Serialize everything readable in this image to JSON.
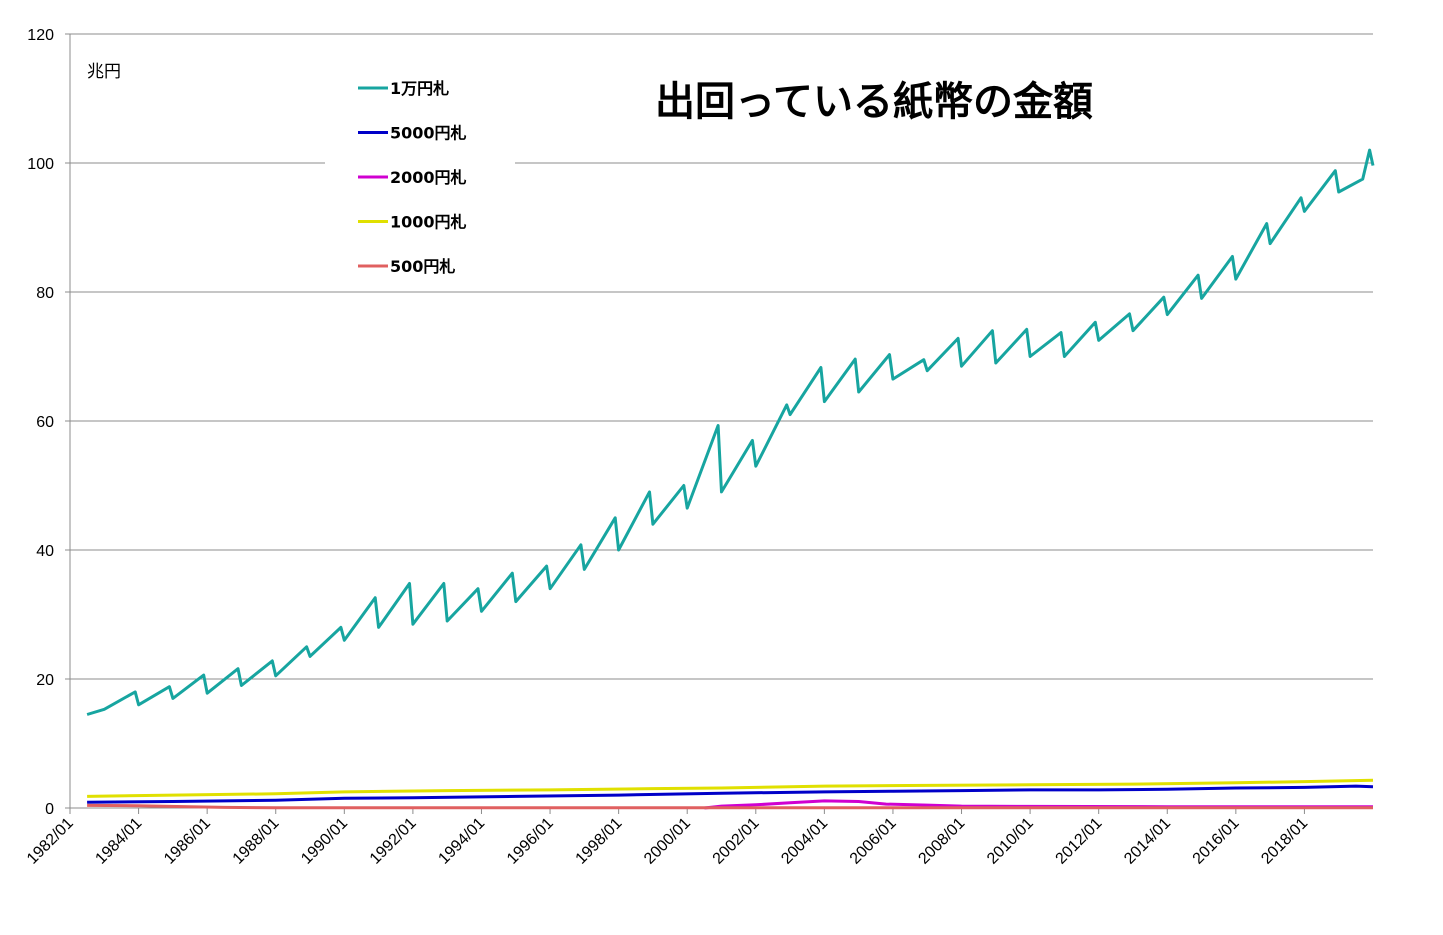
{
  "chart_data": {
    "type": "line",
    "title": "出回っている紙幣の金額",
    "ylabel": "兆円",
    "ylim": [
      0,
      120
    ],
    "yticks": [
      "0",
      "20",
      "40",
      "60",
      "80",
      "100",
      "120"
    ],
    "xticks": [
      "1982/01",
      "1984/01",
      "1986/01",
      "1988/01",
      "1990/01",
      "1992/01",
      "1994/01",
      "1996/01",
      "1998/01",
      "2000/01",
      "2002/01",
      "2004/01",
      "2006/01",
      "2008/01",
      "2010/01",
      "2012/01",
      "2014/01",
      "2016/01",
      "2018/01"
    ],
    "x_range": [
      1982.0,
      2020.0
    ],
    "series": [
      {
        "name": "1万円札",
        "color": "#17A5A0",
        "points": [
          [
            1982.5,
            14.5
          ],
          [
            1983.0,
            15.3
          ],
          [
            1983.9,
            18.0
          ],
          [
            1984.0,
            16.0
          ],
          [
            1984.9,
            18.8
          ],
          [
            1985.0,
            17.0
          ],
          [
            1985.9,
            20.6
          ],
          [
            1986.0,
            17.8
          ],
          [
            1986.9,
            21.6
          ],
          [
            1987.0,
            19.0
          ],
          [
            1987.9,
            22.8
          ],
          [
            1988.0,
            20.5
          ],
          [
            1988.9,
            25.0
          ],
          [
            1989.0,
            23.5
          ],
          [
            1989.9,
            28.0
          ],
          [
            1990.0,
            26.0
          ],
          [
            1990.9,
            32.6
          ],
          [
            1991.0,
            28.0
          ],
          [
            1991.9,
            34.8
          ],
          [
            1992.0,
            28.5
          ],
          [
            1992.9,
            34.8
          ],
          [
            1993.0,
            29.0
          ],
          [
            1993.9,
            34.0
          ],
          [
            1994.0,
            30.5
          ],
          [
            1994.9,
            36.4
          ],
          [
            1995.0,
            32.0
          ],
          [
            1995.9,
            37.5
          ],
          [
            1996.0,
            34.0
          ],
          [
            1996.9,
            40.8
          ],
          [
            1997.0,
            37.0
          ],
          [
            1997.9,
            45.0
          ],
          [
            1998.0,
            40.0
          ],
          [
            1998.9,
            49.0
          ],
          [
            1999.0,
            44.0
          ],
          [
            1999.9,
            50.0
          ],
          [
            2000.0,
            46.5
          ],
          [
            2000.9,
            59.3
          ],
          [
            2001.0,
            49.0
          ],
          [
            2001.9,
            57.0
          ],
          [
            2002.0,
            53.0
          ],
          [
            2002.9,
            62.5
          ],
          [
            2003.0,
            61.0
          ],
          [
            2003.9,
            68.3
          ],
          [
            2004.0,
            63.0
          ],
          [
            2004.9,
            69.6
          ],
          [
            2005.0,
            64.5
          ],
          [
            2005.9,
            70.3
          ],
          [
            2006.0,
            66.5
          ],
          [
            2006.9,
            69.5
          ],
          [
            2007.0,
            67.8
          ],
          [
            2007.9,
            72.8
          ],
          [
            2008.0,
            68.5
          ],
          [
            2008.9,
            74.0
          ],
          [
            2009.0,
            69.0
          ],
          [
            2009.9,
            74.2
          ],
          [
            2010.0,
            70.0
          ],
          [
            2010.9,
            73.7
          ],
          [
            2011.0,
            70.0
          ],
          [
            2011.9,
            75.3
          ],
          [
            2012.0,
            72.5
          ],
          [
            2012.9,
            76.6
          ],
          [
            2013.0,
            74.0
          ],
          [
            2013.9,
            79.2
          ],
          [
            2014.0,
            76.5
          ],
          [
            2014.9,
            82.6
          ],
          [
            2015.0,
            79.0
          ],
          [
            2015.9,
            85.5
          ],
          [
            2016.0,
            82.0
          ],
          [
            2016.9,
            90.6
          ],
          [
            2017.0,
            87.5
          ],
          [
            2017.9,
            94.6
          ],
          [
            2018.0,
            92.5
          ],
          [
            2018.9,
            98.8
          ],
          [
            2019.0,
            95.5
          ],
          [
            2019.7,
            97.5
          ],
          [
            2019.9,
            102.0
          ],
          [
            2020.0,
            99.6
          ]
        ]
      },
      {
        "name": "5000円札",
        "color": "#0000C8",
        "points": [
          [
            1982.5,
            0.9
          ],
          [
            1985,
            1.0
          ],
          [
            1988,
            1.2
          ],
          [
            1990,
            1.5
          ],
          [
            1992,
            1.6
          ],
          [
            1995,
            1.8
          ],
          [
            1998,
            2.0
          ],
          [
            2001,
            2.3
          ],
          [
            2004,
            2.5
          ],
          [
            2006,
            2.6
          ],
          [
            2008,
            2.7
          ],
          [
            2010,
            2.8
          ],
          [
            2012,
            2.8
          ],
          [
            2014,
            2.9
          ],
          [
            2016,
            3.1
          ],
          [
            2018,
            3.2
          ],
          [
            2019.5,
            3.4
          ],
          [
            2020,
            3.3
          ]
        ]
      },
      {
        "name": "2000円札",
        "color": "#D000D0",
        "points": [
          [
            2000.5,
            0.0
          ],
          [
            2001,
            0.3
          ],
          [
            2002,
            0.5
          ],
          [
            2003,
            0.8
          ],
          [
            2004,
            1.1
          ],
          [
            2005,
            1.0
          ],
          [
            2005.8,
            0.6
          ],
          [
            2007,
            0.45
          ],
          [
            2008,
            0.3
          ],
          [
            2010,
            0.25
          ],
          [
            2014,
            0.2
          ],
          [
            2020,
            0.2
          ]
        ]
      },
      {
        "name": "1000円札",
        "color": "#E0E000",
        "points": [
          [
            1982.5,
            1.8
          ],
          [
            1985,
            2.0
          ],
          [
            1988,
            2.2
          ],
          [
            1990,
            2.5
          ],
          [
            1993,
            2.7
          ],
          [
            1996,
            2.8
          ],
          [
            1999,
            3.0
          ],
          [
            2001,
            3.1
          ],
          [
            2004,
            3.4
          ],
          [
            2007,
            3.5
          ],
          [
            2010,
            3.6
          ],
          [
            2013,
            3.7
          ],
          [
            2016,
            3.9
          ],
          [
            2018,
            4.1
          ],
          [
            2020,
            4.3
          ]
        ]
      },
      {
        "name": "500円札",
        "color": "#E06060",
        "points": [
          [
            1982.5,
            0.4
          ],
          [
            1984,
            0.35
          ],
          [
            1985.5,
            0.2
          ],
          [
            1986.5,
            0.1
          ],
          [
            1988,
            0.05
          ],
          [
            2020,
            0.05
          ]
        ]
      }
    ]
  }
}
